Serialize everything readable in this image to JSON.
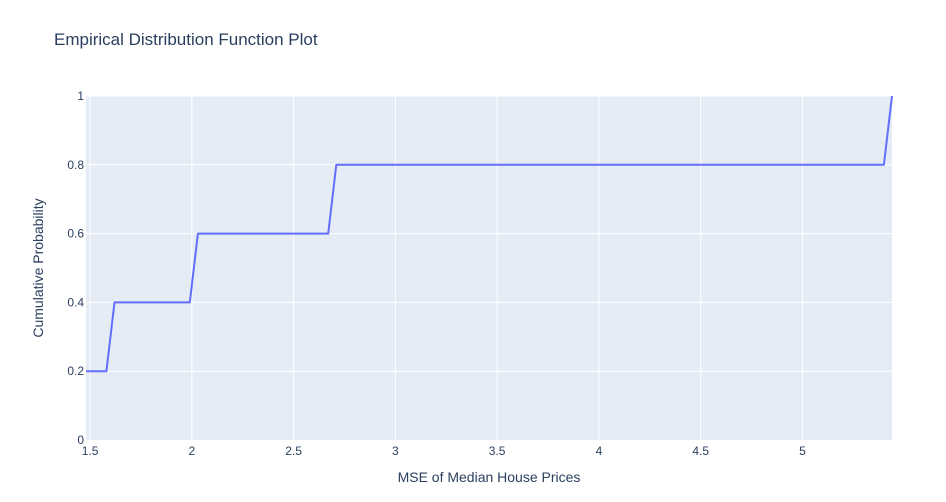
{
  "chart_data": {
    "type": "line",
    "title": "Empirical Distribution Function Plot",
    "xlabel": "MSE of Median House Prices",
    "ylabel": "Cumulative Probability",
    "xlim": [
      1.48,
      5.44
    ],
    "ylim": [
      0,
      1
    ],
    "xticks": [
      1.5,
      2,
      2.5,
      3,
      3.5,
      4,
      4.5,
      5
    ],
    "xtick_labels": [
      "1.5",
      "2",
      "2.5",
      "3",
      "3.5",
      "4",
      "4.5",
      "5"
    ],
    "yticks": [
      0,
      0.2,
      0.4,
      0.6,
      0.8,
      1
    ],
    "ytick_labels": [
      "0",
      "0.2",
      "0.4",
      "0.6",
      "0.8",
      "1"
    ],
    "grid": true,
    "colors": {
      "line": "#636efa",
      "plot_bg": "#e5ecf6",
      "grid": "#ffffff",
      "text": "#2a3f5f"
    },
    "series": [
      {
        "x": [
          1.48,
          1.58,
          1.62,
          1.99,
          2.03,
          2.67,
          2.71,
          5.4,
          5.44
        ],
        "y": [
          0.2,
          0.2,
          0.4,
          0.4,
          0.6,
          0.6,
          0.8,
          0.8,
          1.0
        ]
      }
    ]
  }
}
